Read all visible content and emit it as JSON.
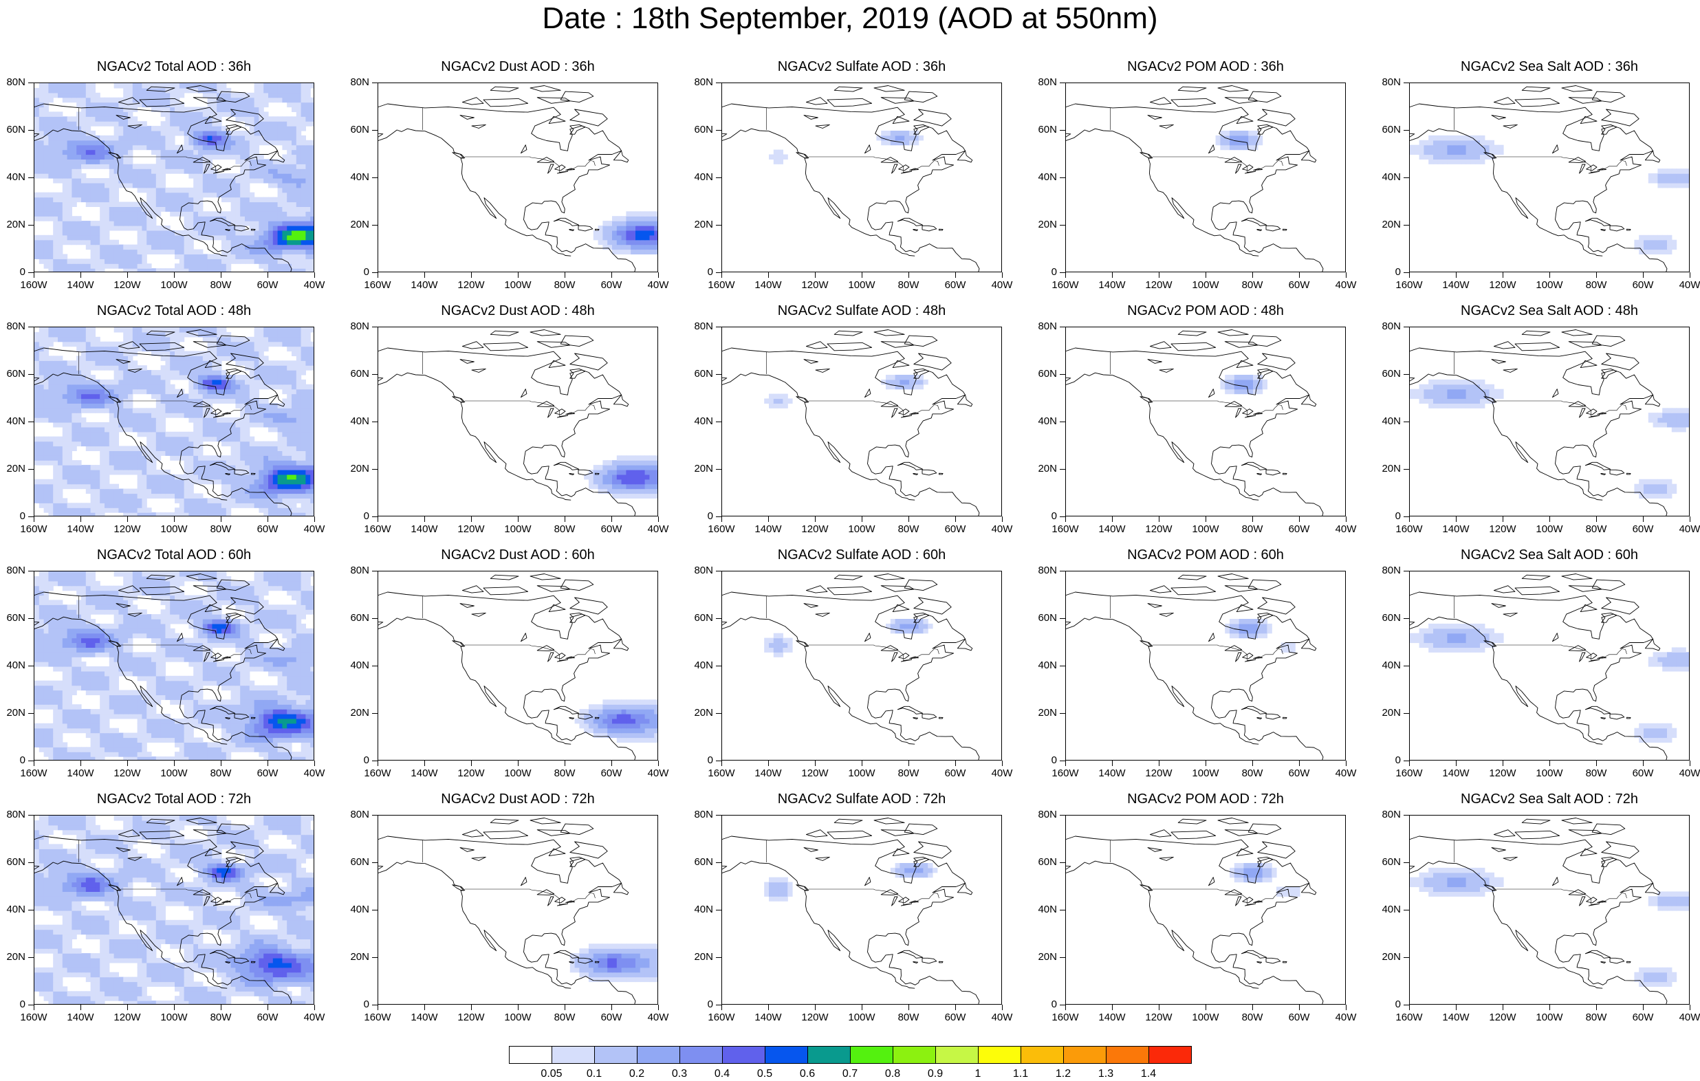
{
  "title": "Date : 18th September, 2019 (AOD at 550nm)",
  "lat_labels": [
    "80N",
    "60N",
    "40N",
    "20N",
    "0"
  ],
  "lon_labels": [
    "160W",
    "140W",
    "120W",
    "100W",
    "80W",
    "60W",
    "40W"
  ],
  "colorbar": {
    "labels": [
      "0.05",
      "0.1",
      "0.2",
      "0.3",
      "0.4",
      "0.5",
      "0.6",
      "0.7",
      "0.8",
      "0.9",
      "1",
      "1.1",
      "1.2",
      "1.3",
      "1.4"
    ],
    "colors": [
      "#ffffff",
      "#d6defb",
      "#b3c3f7",
      "#91a8f4",
      "#7e8ff1",
      "#6061ec",
      "#0656ee",
      "#099a8e",
      "#54f10f",
      "#8cf110",
      "#c6f745",
      "#fdfd09",
      "#fbbd09",
      "#fb9b09",
      "#fb7809",
      "#fb2909"
    ]
  },
  "panels": [
    {
      "title": "NGACv2 Total AOD : 36h",
      "species": "total",
      "hour": 36
    },
    {
      "title": "NGACv2 Dust AOD : 36h",
      "species": "dust",
      "hour": 36
    },
    {
      "title": "NGACv2 Sulfate AOD : 36h",
      "species": "sulfate",
      "hour": 36
    },
    {
      "title": "NGACv2 POM AOD : 36h",
      "species": "pom",
      "hour": 36
    },
    {
      "title": "NGACv2 Sea Salt AOD : 36h",
      "species": "seasalt",
      "hour": 36
    },
    {
      "title": "NGACv2 Total AOD : 48h",
      "species": "total",
      "hour": 48
    },
    {
      "title": "NGACv2 Dust AOD : 48h",
      "species": "dust",
      "hour": 48
    },
    {
      "title": "NGACv2 Sulfate AOD : 48h",
      "species": "sulfate",
      "hour": 48
    },
    {
      "title": "NGACv2 POM AOD : 48h",
      "species": "pom",
      "hour": 48
    },
    {
      "title": "NGACv2 Sea Salt AOD : 48h",
      "species": "seasalt",
      "hour": 48
    },
    {
      "title": "NGACv2 Total AOD : 60h",
      "species": "total",
      "hour": 60
    },
    {
      "title": "NGACv2 Dust AOD : 60h",
      "species": "dust",
      "hour": 60
    },
    {
      "title": "NGACv2 Sulfate AOD : 60h",
      "species": "sulfate",
      "hour": 60
    },
    {
      "title": "NGACv2 POM AOD : 60h",
      "species": "pom",
      "hour": 60
    },
    {
      "title": "NGACv2 Sea Salt AOD : 60h",
      "species": "seasalt",
      "hour": 60
    },
    {
      "title": "NGACv2 Total AOD : 72h",
      "species": "total",
      "hour": 72
    },
    {
      "title": "NGACv2 Dust AOD : 72h",
      "species": "dust",
      "hour": 72
    },
    {
      "title": "NGACv2 Sulfate AOD : 72h",
      "species": "sulfate",
      "hour": 72
    },
    {
      "title": "NGACv2 POM AOD : 72h",
      "species": "pom",
      "hour": 72
    },
    {
      "title": "NGACv2 Sea Salt  AOD : 72h",
      "species": "seasalt",
      "hour": 72
    }
  ]
}
